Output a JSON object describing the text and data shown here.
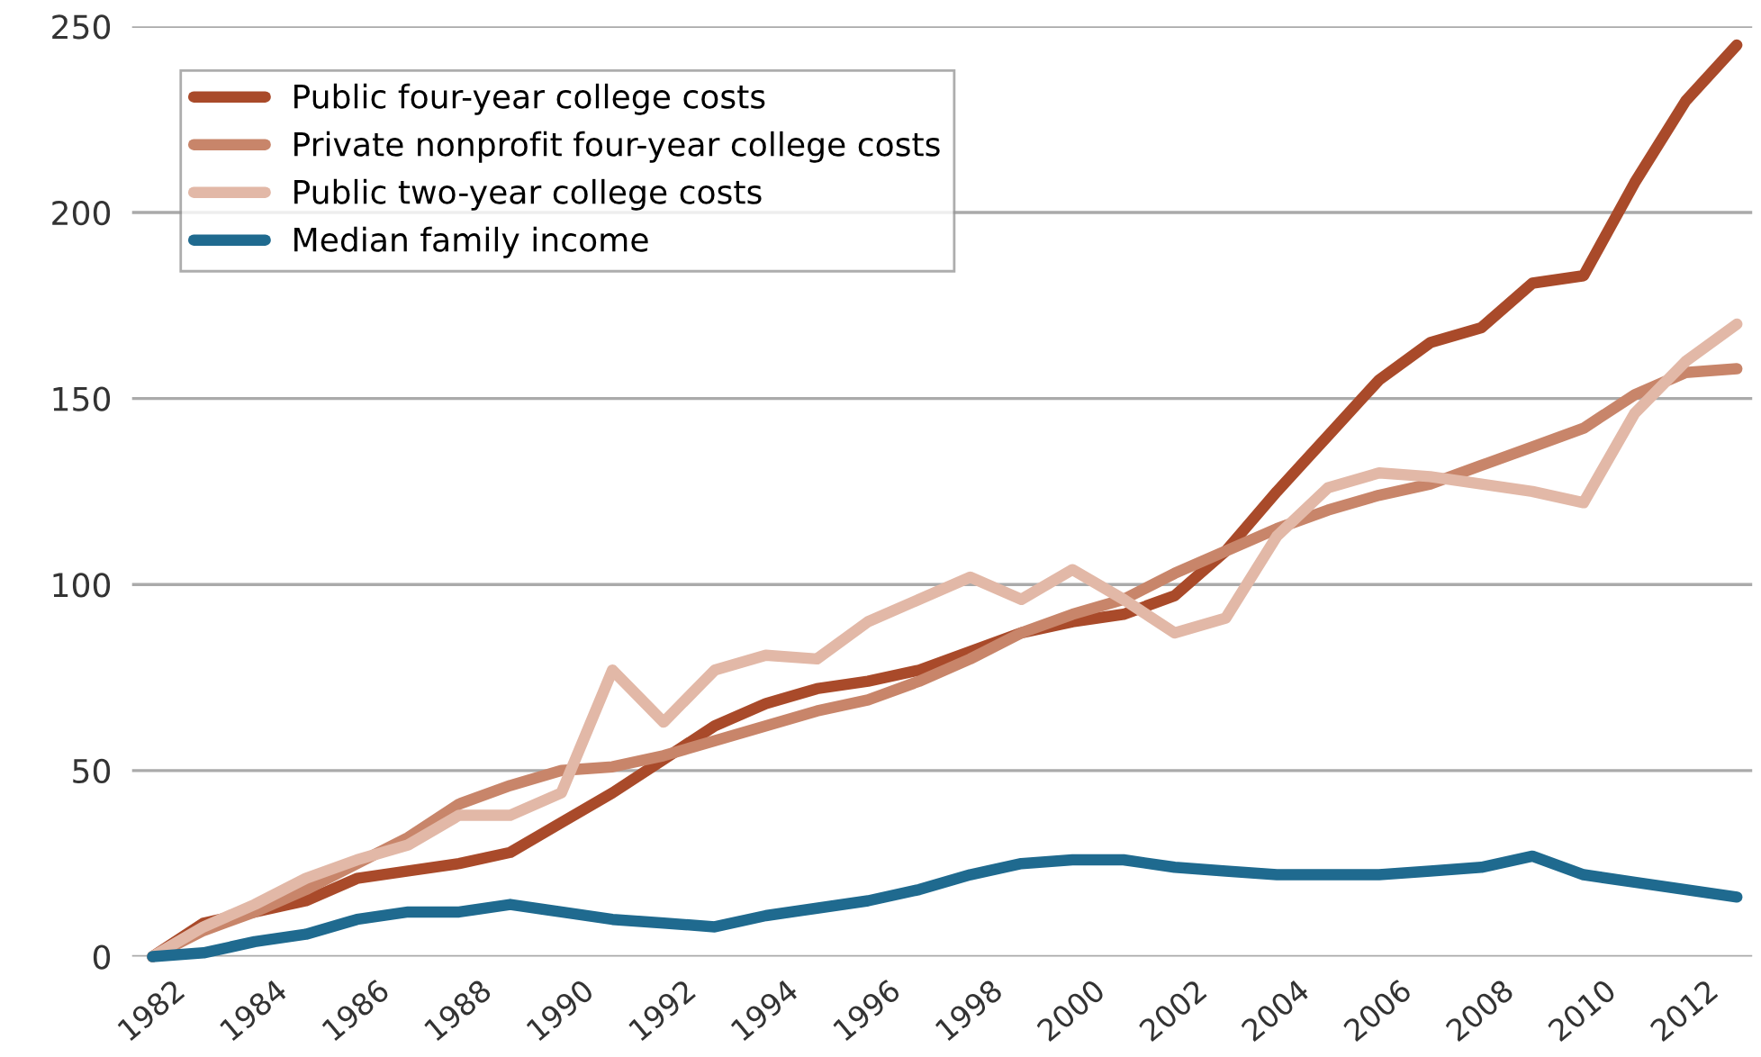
{
  "chart_data": {
    "type": "line",
    "x": [
      1982,
      1983,
      1984,
      1985,
      1986,
      1987,
      1988,
      1989,
      1990,
      1991,
      1992,
      1993,
      1994,
      1995,
      1996,
      1997,
      1998,
      1999,
      2000,
      2001,
      2002,
      2003,
      2004,
      2005,
      2006,
      2007,
      2008,
      2009,
      2010,
      2011,
      2012,
      2013
    ],
    "series": [
      {
        "name": "Public four-year college costs",
        "color": "#a94a2a",
        "values": [
          0,
          9,
          12,
          15,
          21,
          23,
          25,
          28,
          36,
          44,
          53,
          62,
          68,
          72,
          74,
          77,
          82,
          87,
          90,
          92,
          97,
          109,
          125,
          140,
          155,
          165,
          169,
          181,
          183,
          208,
          230,
          245
        ]
      },
      {
        "name": "Private nonprofit four-year college costs",
        "color": "#c8856a",
        "values": [
          0,
          7,
          12,
          18,
          25,
          32,
          41,
          46,
          50,
          51,
          54,
          58,
          62,
          66,
          69,
          74,
          80,
          87,
          92,
          96,
          103,
          109,
          115,
          120,
          124,
          127,
          132,
          137,
          142,
          151,
          157,
          158
        ]
      },
      {
        "name": "Public two-year college costs",
        "color": "#e2b8a7",
        "values": [
          0,
          8,
          14,
          21,
          26,
          30,
          38,
          38,
          44,
          77,
          63,
          77,
          81,
          80,
          90,
          96,
          102,
          96,
          104,
          96,
          87,
          91,
          113,
          126,
          130,
          129,
          127,
          125,
          122,
          146,
          160,
          170
        ]
      },
      {
        "name": "Median family income",
        "color": "#1f6a8f",
        "values": [
          0,
          1,
          4,
          6,
          10,
          12,
          12,
          14,
          12,
          10,
          9,
          8,
          11,
          13,
          15,
          18,
          22,
          25,
          26,
          26,
          24,
          23,
          22,
          22,
          22,
          23,
          24,
          27,
          22,
          20,
          18,
          16
        ]
      }
    ],
    "xlim": [
      1981.6,
      2013.3
    ],
    "xticks": [
      1982,
      1984,
      1986,
      1988,
      1990,
      1992,
      1994,
      1996,
      1998,
      2000,
      2002,
      2004,
      2006,
      2008,
      2010,
      2012
    ],
    "ylim": [
      0,
      250
    ],
    "yticks": [
      0,
      50,
      100,
      150,
      200,
      250
    ],
    "grid": "y",
    "legend": "top left",
    "marker": "none",
    "line_style": "solid"
  }
}
